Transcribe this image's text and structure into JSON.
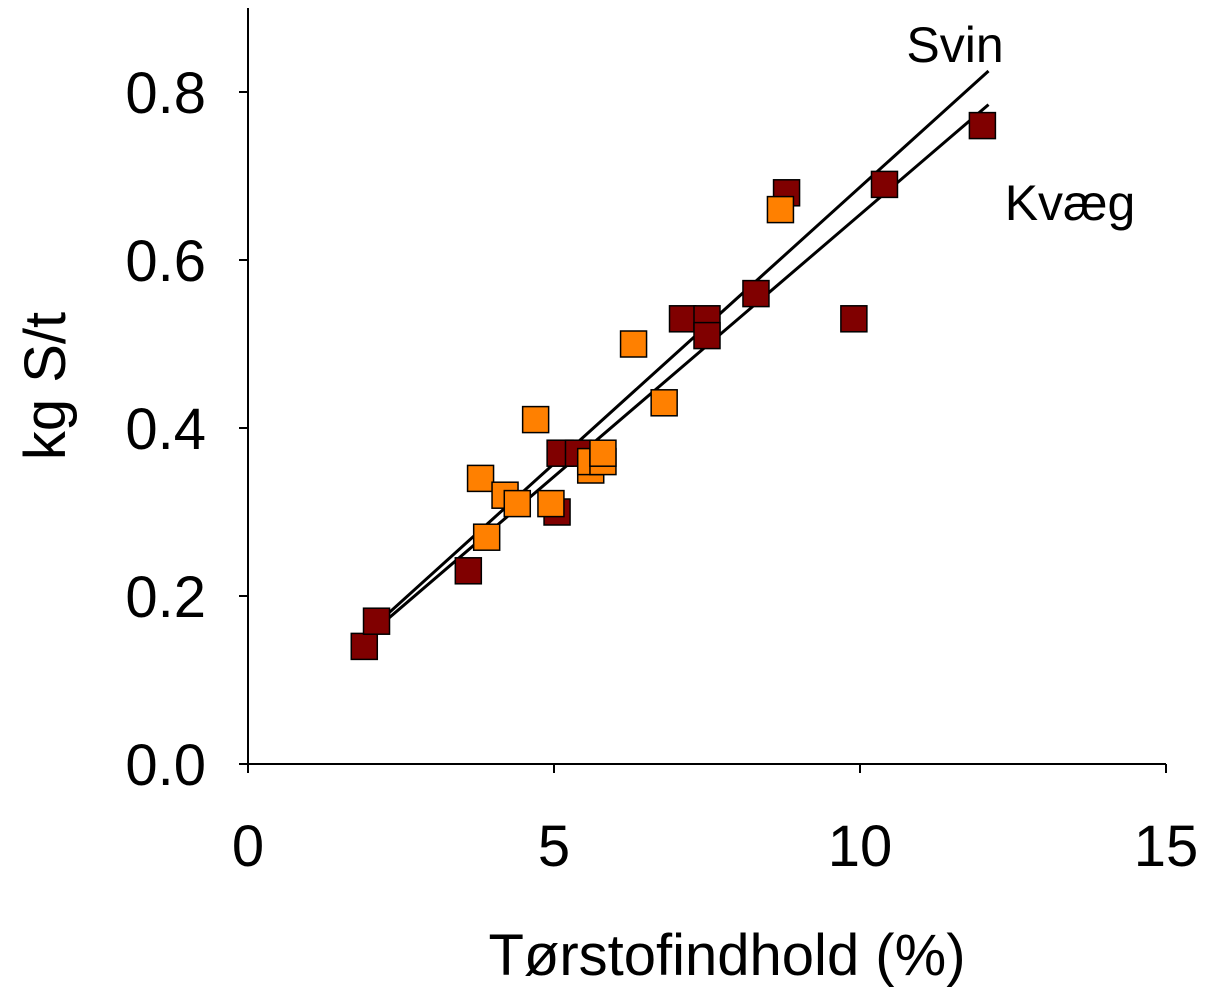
{
  "chart_data": {
    "type": "scatter",
    "title": "",
    "xlabel": "Tørstofindhold (%)",
    "ylabel": "kg S/t",
    "xlim": [
      0,
      15
    ],
    "ylim": [
      0,
      0.9
    ],
    "x_ticks": [
      0,
      5,
      10,
      15
    ],
    "x_tick_labels": [
      "0",
      "5",
      "10",
      "15"
    ],
    "y_ticks": [
      0.0,
      0.2,
      0.4,
      0.6,
      0.8
    ],
    "y_tick_labels": [
      "0.0",
      "0.2",
      "0.4",
      "0.6",
      "0.8"
    ],
    "grid": false,
    "legend": "none",
    "series": [
      {
        "color": "#800000",
        "marker": "square",
        "points": [
          {
            "x": 1.9,
            "y": 0.14
          },
          {
            "x": 2.1,
            "y": 0.17
          },
          {
            "x": 3.6,
            "y": 0.23
          },
          {
            "x": 5.05,
            "y": 0.3
          },
          {
            "x": 5.1,
            "y": 0.37
          },
          {
            "x": 5.4,
            "y": 0.37
          },
          {
            "x": 7.1,
            "y": 0.53
          },
          {
            "x": 7.5,
            "y": 0.53
          },
          {
            "x": 7.5,
            "y": 0.51
          },
          {
            "x": 8.3,
            "y": 0.56
          },
          {
            "x": 8.8,
            "y": 0.68
          },
          {
            "x": 9.9,
            "y": 0.53
          },
          {
            "x": 10.4,
            "y": 0.69
          },
          {
            "x": 12.0,
            "y": 0.76
          }
        ]
      },
      {
        "color": "#FF8000",
        "marker": "square",
        "points": [
          {
            "x": 3.8,
            "y": 0.34
          },
          {
            "x": 3.9,
            "y": 0.27
          },
          {
            "x": 4.2,
            "y": 0.32
          },
          {
            "x": 4.4,
            "y": 0.31
          },
          {
            "x": 4.7,
            "y": 0.41
          },
          {
            "x": 4.95,
            "y": 0.31
          },
          {
            "x": 5.6,
            "y": 0.35
          },
          {
            "x": 5.6,
            "y": 0.36
          },
          {
            "x": 5.8,
            "y": 0.36
          },
          {
            "x": 5.8,
            "y": 0.37
          },
          {
            "x": 6.3,
            "y": 0.5
          },
          {
            "x": 6.8,
            "y": 0.43
          },
          {
            "x": 8.7,
            "y": 0.66
          }
        ]
      }
    ],
    "lines": [
      {
        "label": "Svin",
        "x": [
          2.0,
          12.1
        ],
        "y": [
          0.16,
          0.825
        ]
      },
      {
        "label": "Kvæg",
        "x": [
          2.0,
          12.1
        ],
        "y": [
          0.155,
          0.785
        ]
      }
    ],
    "annotations": [
      "Svin",
      "Kvæg"
    ]
  }
}
